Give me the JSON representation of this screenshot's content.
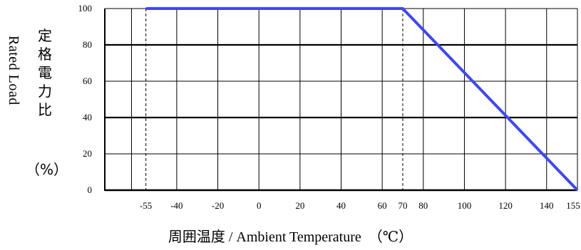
{
  "chart_data": {
    "type": "line",
    "title": "",
    "ylabel_en": "Rated Load",
    "ylabel_jp_chars": [
      "定",
      "格",
      "電",
      "力",
      "比"
    ],
    "ylabel_unit": "（%）",
    "xlabel_jp": "周囲温度",
    "xlabel_en": " / Ambient Temperature　（℃）",
    "y_ticks": [
      0,
      20,
      40,
      60,
      80,
      100
    ],
    "x_ticks": [
      -55,
      -40,
      -20,
      0,
      20,
      40,
      60,
      70,
      80,
      100,
      120,
      140,
      155
    ],
    "xlim": [
      -75,
      155
    ],
    "ylim": [
      0,
      100
    ],
    "dashed_verticals": [
      -55,
      70
    ],
    "bold_horizontals": [
      80,
      40
    ],
    "series": [
      {
        "x": [
          -55,
          70,
          155
        ],
        "y": [
          100,
          100,
          0
        ],
        "color": "#3f48f2"
      }
    ],
    "grid": true
  }
}
